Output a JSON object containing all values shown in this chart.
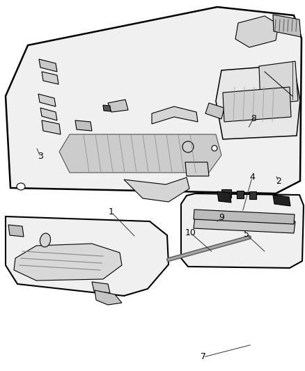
{
  "bg_color": "#ffffff",
  "line_color": "#000000",
  "line_width": 1.5,
  "thin_line": 0.8,
  "label_fontsize": 9,
  "labels_info": [
    [
      "1",
      160,
      228,
      195,
      192
    ],
    [
      "2",
      400,
      272,
      396,
      282
    ],
    [
      "3",
      58,
      308,
      52,
      322
    ],
    [
      "4",
      362,
      278,
      348,
      228
    ],
    [
      "5",
      354,
      196,
      382,
      170
    ],
    [
      "7",
      292,
      20,
      362,
      38
    ],
    [
      "8",
      364,
      363,
      356,
      348
    ],
    [
      "9",
      318,
      220,
      310,
      213
    ],
    [
      "10",
      274,
      198,
      306,
      170
    ]
  ]
}
